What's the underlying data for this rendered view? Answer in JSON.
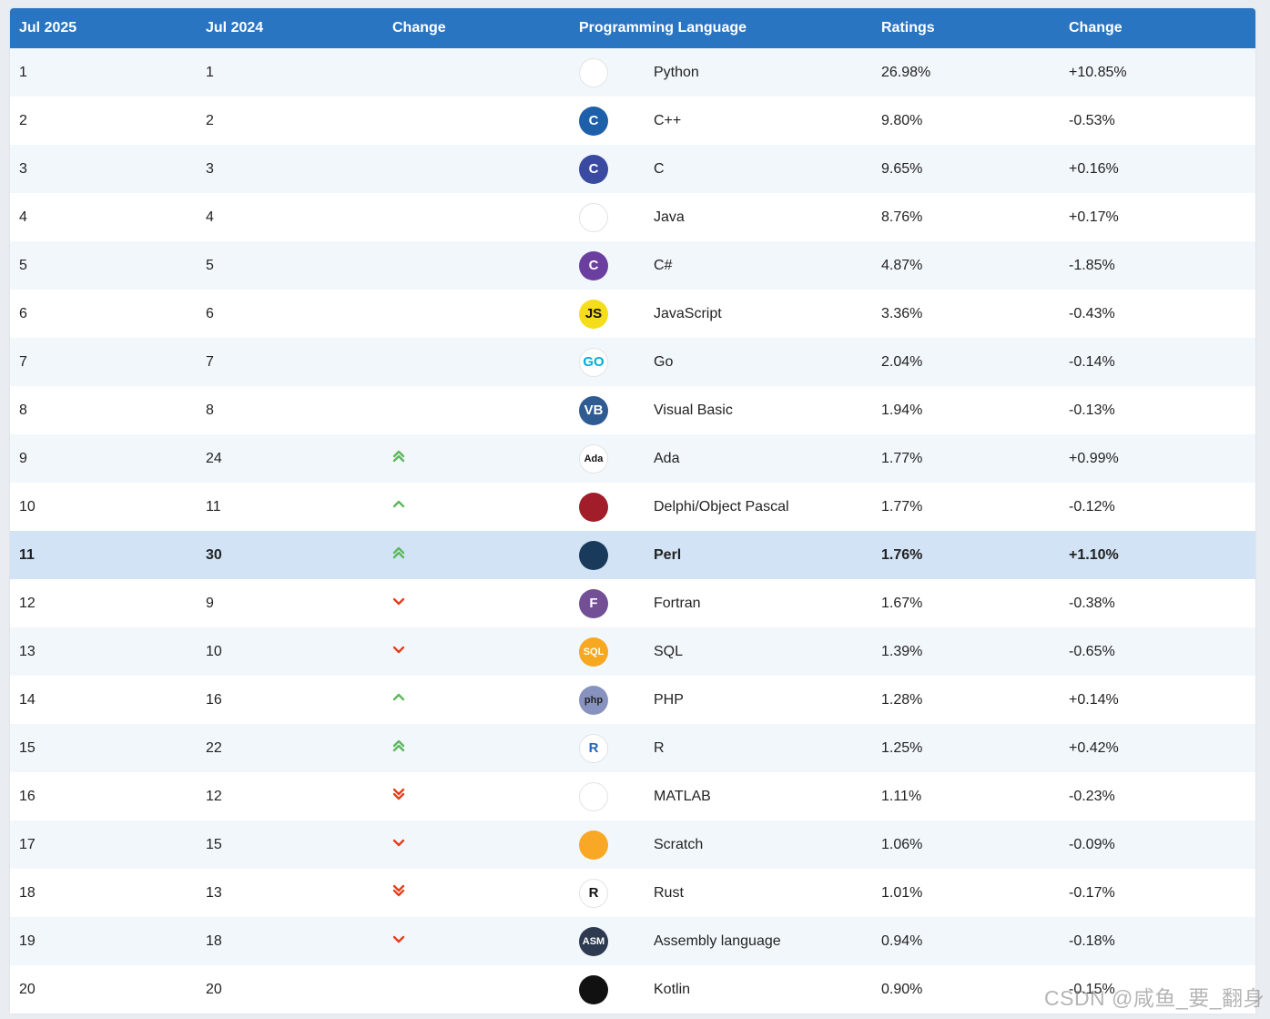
{
  "table": {
    "headers": {
      "rank": "Jul 2025",
      "prev_rank": "Jul 2024",
      "change": "Change",
      "language": "Programming Language",
      "ratings": "Ratings",
      "delta": "Change"
    },
    "rows": [
      {
        "rank": "1",
        "prev": "1",
        "trend": "none",
        "lang": "Python",
        "rating": "26.98%",
        "delta": "+10.85%",
        "logo": "python-icon",
        "logo_text": "",
        "logo_bg": "#ffffff",
        "logo_fg": "#3772a4"
      },
      {
        "rank": "2",
        "prev": "2",
        "trend": "none",
        "lang": "C++",
        "rating": "9.80%",
        "delta": "-0.53%",
        "logo": "cpp-icon",
        "logo_text": "C",
        "logo_bg": "#1d5fa8",
        "logo_fg": "#ffffff"
      },
      {
        "rank": "3",
        "prev": "3",
        "trend": "none",
        "lang": "C",
        "rating": "9.65%",
        "delta": "+0.16%",
        "logo": "c-icon",
        "logo_text": "C",
        "logo_bg": "#3a4aa0",
        "logo_fg": "#ffffff"
      },
      {
        "rank": "4",
        "prev": "4",
        "trend": "none",
        "lang": "Java",
        "rating": "8.76%",
        "delta": "+0.17%",
        "logo": "java-icon",
        "logo_text": "",
        "logo_bg": "#ffffff",
        "logo_fg": "#e76f00"
      },
      {
        "rank": "5",
        "prev": "5",
        "trend": "none",
        "lang": "C#",
        "rating": "4.87%",
        "delta": "-1.85%",
        "logo": "csharp-icon",
        "logo_text": "C",
        "logo_bg": "#6a3fa0",
        "logo_fg": "#ffffff"
      },
      {
        "rank": "6",
        "prev": "6",
        "trend": "none",
        "lang": "JavaScript",
        "rating": "3.36%",
        "delta": "-0.43%",
        "logo": "javascript-icon",
        "logo_text": "JS",
        "logo_bg": "#f5de19",
        "logo_fg": "#111111"
      },
      {
        "rank": "7",
        "prev": "7",
        "trend": "none",
        "lang": "Go",
        "rating": "2.04%",
        "delta": "-0.14%",
        "logo": "go-icon",
        "logo_text": "GO",
        "logo_bg": "#ffffff",
        "logo_fg": "#00add8"
      },
      {
        "rank": "8",
        "prev": "8",
        "trend": "none",
        "lang": "Visual Basic",
        "rating": "1.94%",
        "delta": "-0.13%",
        "logo": "visual-basic-icon",
        "logo_text": "VB",
        "logo_bg": "#2e5c92",
        "logo_fg": "#ffffff"
      },
      {
        "rank": "9",
        "prev": "24",
        "trend": "up2",
        "lang": "Ada",
        "rating": "1.77%",
        "delta": "+0.99%",
        "logo": "ada-icon",
        "logo_text": "Ada",
        "logo_bg": "#ffffff",
        "logo_fg": "#111111"
      },
      {
        "rank": "10",
        "prev": "11",
        "trend": "up",
        "lang": "Delphi/Object Pascal",
        "rating": "1.77%",
        "delta": "-0.12%",
        "logo": "delphi-icon",
        "logo_text": "",
        "logo_bg": "#a11d2a",
        "logo_fg": "#ffffff"
      },
      {
        "rank": "11",
        "prev": "30",
        "trend": "up2",
        "lang": "Perl",
        "rating": "1.76%",
        "delta": "+1.10%",
        "logo": "perl-icon",
        "logo_text": "",
        "logo_bg": "#1a3a5c",
        "logo_fg": "#ffffff",
        "highlight": true
      },
      {
        "rank": "12",
        "prev": "9",
        "trend": "down",
        "lang": "Fortran",
        "rating": "1.67%",
        "delta": "-0.38%",
        "logo": "fortran-icon",
        "logo_text": "F",
        "logo_bg": "#734f96",
        "logo_fg": "#ffffff"
      },
      {
        "rank": "13",
        "prev": "10",
        "trend": "down",
        "lang": "SQL",
        "rating": "1.39%",
        "delta": "-0.65%",
        "logo": "sql-icon",
        "logo_text": "SQL",
        "logo_bg": "#f6a821",
        "logo_fg": "#ffffff"
      },
      {
        "rank": "14",
        "prev": "16",
        "trend": "up",
        "lang": "PHP",
        "rating": "1.28%",
        "delta": "+0.14%",
        "logo": "php-icon",
        "logo_text": "php",
        "logo_bg": "#8892bf",
        "logo_fg": "#222222"
      },
      {
        "rank": "15",
        "prev": "22",
        "trend": "up2",
        "lang": "R",
        "rating": "1.25%",
        "delta": "+0.42%",
        "logo": "r-icon",
        "logo_text": "R",
        "logo_bg": "#ffffff",
        "logo_fg": "#2164b5"
      },
      {
        "rank": "16",
        "prev": "12",
        "trend": "down2",
        "lang": "MATLAB",
        "rating": "1.11%",
        "delta": "-0.23%",
        "logo": "matlab-icon",
        "logo_text": "",
        "logo_bg": "#ffffff",
        "logo_fg": "#e16737"
      },
      {
        "rank": "17",
        "prev": "15",
        "trend": "down",
        "lang": "Scratch",
        "rating": "1.06%",
        "delta": "-0.09%",
        "logo": "scratch-icon",
        "logo_text": "",
        "logo_bg": "#f9a825",
        "logo_fg": "#ffffff"
      },
      {
        "rank": "18",
        "prev": "13",
        "trend": "down2",
        "lang": "Rust",
        "rating": "1.01%",
        "delta": "-0.17%",
        "logo": "rust-icon",
        "logo_text": "R",
        "logo_bg": "#ffffff",
        "logo_fg": "#111111"
      },
      {
        "rank": "19",
        "prev": "18",
        "trend": "down",
        "lang": "Assembly language",
        "rating": "0.94%",
        "delta": "-0.18%",
        "logo": "assembly-icon",
        "logo_text": "ASM",
        "logo_bg": "#2d3a4f",
        "logo_fg": "#ffffff"
      },
      {
        "rank": "20",
        "prev": "20",
        "trend": "none",
        "lang": "Kotlin",
        "rating": "0.90%",
        "delta": "-0.15%",
        "logo": "kotlin-icon",
        "logo_text": "",
        "logo_bg": "#111111",
        "logo_fg": "#ffffff"
      }
    ]
  },
  "watermark": "CSDN @咸鱼_要_翻身",
  "colors": {
    "header_bg": "#2a75c2",
    "row_alt": "#f2f7fc",
    "row_highlight": "#d2e3f5",
    "arrow_up": "#5cb85c",
    "arrow_down": "#e2401c"
  }
}
